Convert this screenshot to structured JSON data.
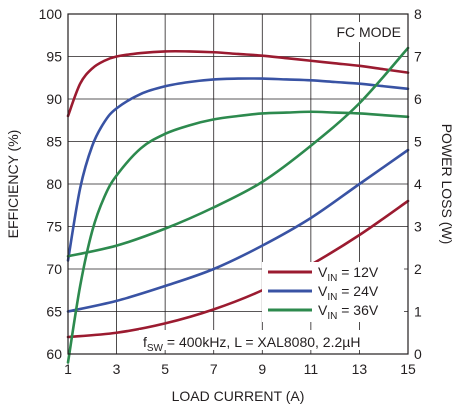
{
  "chart_data": {
    "type": "line",
    "xlabel": "LOAD CURRENT (A)",
    "ylabel_left": "EFFICIENCY (%)",
    "ylabel_right": "POWER LOSS (W)",
    "x_ticks": [
      1,
      3,
      5,
      7,
      9,
      11,
      13,
      15
    ],
    "y_left_ticks": [
      60,
      65,
      70,
      75,
      80,
      85,
      90,
      95,
      100
    ],
    "y_right_ticks": [
      0,
      1,
      2,
      3,
      4,
      5,
      6,
      7,
      8
    ],
    "xlim": [
      1,
      15
    ],
    "ylim_left": [
      60,
      100
    ],
    "ylim_right": [
      0,
      8
    ],
    "grid": true,
    "mode_label": "FC MODE",
    "conditions": {
      "prefix": "f",
      "sub": "SW",
      "text": " = 400kHz, L = XAL8080, 2.2µH"
    },
    "legend": {
      "prefix": "V",
      "sub": "IN"
    },
    "series": [
      {
        "name": " = 12V",
        "color": "#9b1b30",
        "efficiency": {
          "x": [
            1,
            1.5,
            2,
            2.5,
            3,
            4,
            5,
            6,
            7,
            8,
            9,
            10,
            11,
            12,
            13,
            14,
            15
          ],
          "y": [
            88,
            91.8,
            93.6,
            94.5,
            95.0,
            95.4,
            95.6,
            95.6,
            95.5,
            95.3,
            95.1,
            94.8,
            94.5,
            94.2,
            93.9,
            93.5,
            93.1
          ]
        },
        "power_loss": {
          "x": [
            1,
            3,
            5,
            7,
            9,
            11,
            13,
            15
          ],
          "y": [
            0.4,
            0.5,
            0.72,
            1.05,
            1.5,
            2.1,
            2.8,
            3.6
          ]
        }
      },
      {
        "name": " = 24V",
        "color": "#3953a4",
        "efficiency": {
          "x": [
            1,
            1.5,
            2,
            2.5,
            3,
            4,
            5,
            6,
            7,
            8,
            9,
            10,
            11,
            12,
            13,
            14,
            15
          ],
          "y": [
            71,
            79.5,
            84.5,
            87.3,
            88.9,
            90.6,
            91.5,
            92.0,
            92.3,
            92.4,
            92.4,
            92.3,
            92.2,
            92.0,
            91.8,
            91.5,
            91.2
          ]
        },
        "power_loss": {
          "x": [
            1,
            3,
            5,
            7,
            9,
            11,
            13,
            15
          ],
          "y": [
            1.0,
            1.25,
            1.6,
            2.0,
            2.55,
            3.2,
            4.0,
            4.8
          ]
        }
      },
      {
        "name": " = 36V",
        "color": "#2d8a4e",
        "efficiency": {
          "x": [
            1,
            1.5,
            2,
            2.5,
            3,
            4,
            5,
            6,
            7,
            8,
            9,
            10,
            11,
            12,
            13,
            14,
            15
          ],
          "y": [
            59,
            68,
            74.5,
            78.5,
            81.0,
            84.2,
            85.9,
            86.9,
            87.6,
            88.0,
            88.3,
            88.4,
            88.5,
            88.4,
            88.3,
            88.1,
            87.9
          ]
        },
        "power_loss": {
          "x": [
            1,
            3,
            5,
            7,
            9,
            11,
            13,
            15
          ],
          "y": [
            2.3,
            2.55,
            2.95,
            3.45,
            4.05,
            4.9,
            5.9,
            7.2
          ]
        }
      }
    ]
  }
}
